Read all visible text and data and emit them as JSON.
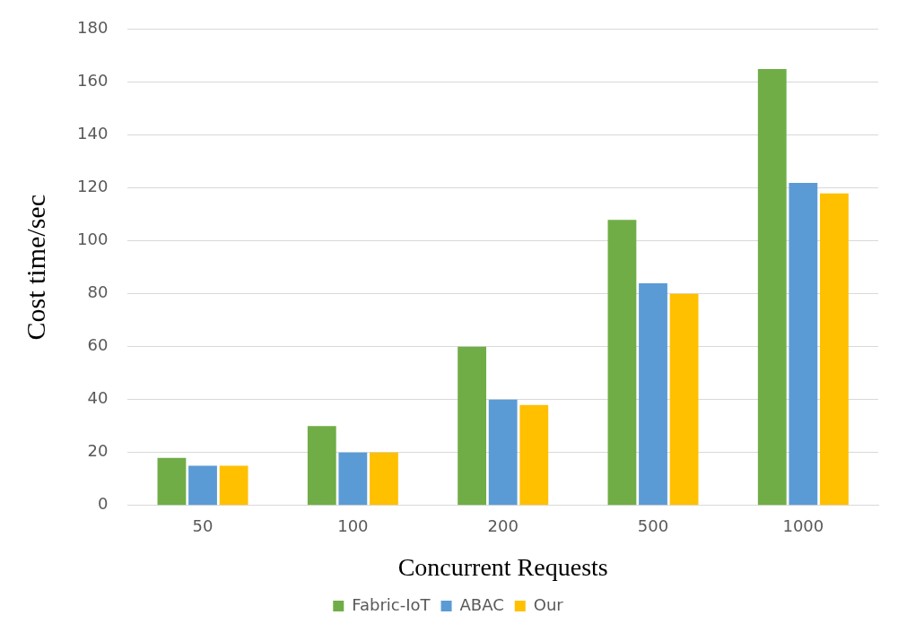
{
  "chart_data": {
    "type": "bar",
    "xlabel": "Concurrent Requests",
    "ylabel": "Cost time/sec",
    "categories": [
      "50",
      "100",
      "200",
      "500",
      "1000"
    ],
    "series": [
      {
        "name": "Fabric-IoT",
        "color": "#70ad47",
        "values": [
          18,
          30,
          60,
          108,
          165
        ]
      },
      {
        "name": "ABAC",
        "color": "#5b9bd5",
        "values": [
          15,
          20,
          40,
          84,
          122
        ]
      },
      {
        "name": "Our",
        "color": "#ffc000",
        "values": [
          15,
          20,
          38,
          80,
          118
        ]
      }
    ],
    "ylim": [
      0,
      180
    ],
    "yticks": [
      0,
      20,
      40,
      60,
      80,
      100,
      120,
      140,
      160,
      180
    ],
    "grid": "y",
    "legend": "bottom"
  }
}
